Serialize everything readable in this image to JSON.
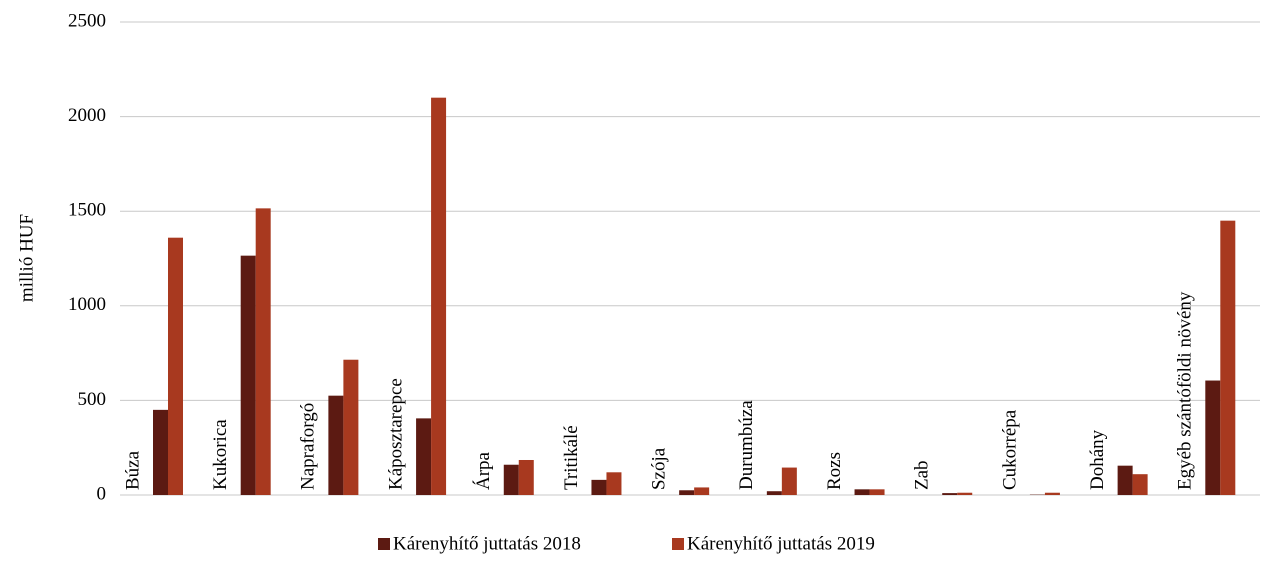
{
  "chart_data": {
    "type": "bar",
    "y_label": "millió HUF",
    "categories": [
      "Búza",
      "Kukorica",
      "Napraforgó",
      "Káposztarepce",
      "Árpa",
      "Tritikálé",
      "Szója",
      "Durumbúza",
      "Rozs",
      "Zab",
      "Cukorrépa",
      "Dohány",
      "Egyéb szántóföldi növény"
    ],
    "series": [
      {
        "name": "Kárenyhítő juttatás 2018",
        "color": "#5c1a12",
        "values": [
          450,
          1265,
          525,
          405,
          160,
          80,
          25,
          20,
          30,
          10,
          2,
          155,
          605
        ]
      },
      {
        "name": "Kárenyhítő juttatás 2019",
        "color": "#a8391f",
        "values": [
          1360,
          1515,
          715,
          2100,
          185,
          120,
          40,
          145,
          30,
          12,
          12,
          110,
          1450
        ]
      }
    ],
    "ylim": [
      0,
      2500
    ],
    "yticks": [
      0,
      500,
      1000,
      1500,
      2000,
      2500
    ],
    "grid": true,
    "legend": "bottom"
  }
}
